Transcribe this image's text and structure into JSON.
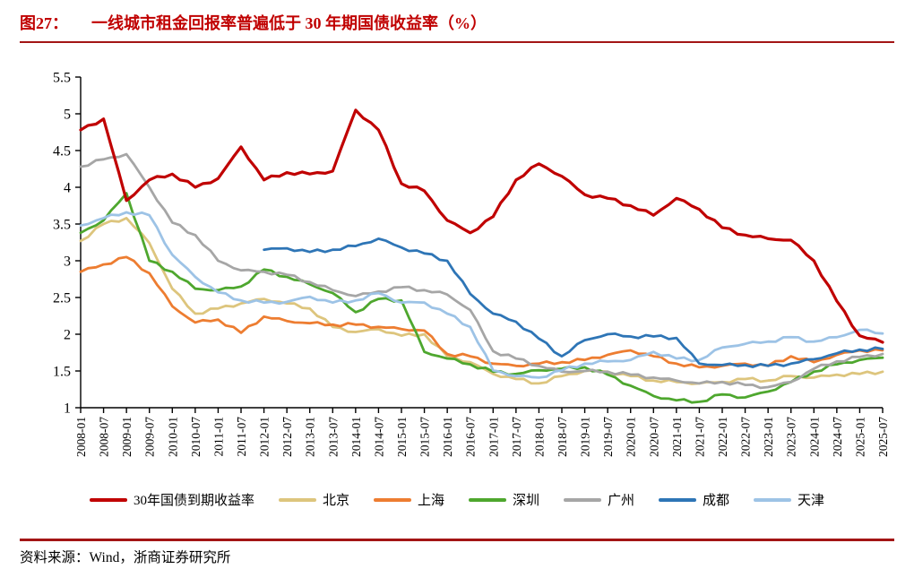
{
  "page": {
    "figure_label": "图27：",
    "title": "一线城市租金回报率普遍低于 30 年期国债收益率（%）",
    "source": "资料来源：Wind，浙商证券研究所",
    "accent_color": "#c00000",
    "rule_color": "#a31515"
  },
  "chart_data": {
    "type": "line",
    "title": "一线城市租金回报率普遍低于 30 年期国债收益率（%）",
    "xlabel": "",
    "ylabel": "",
    "ylim": [
      1,
      5.5
    ],
    "y_ticks": [
      5.5,
      5,
      4.5,
      4,
      3.5,
      3,
      2.5,
      2,
      1.5,
      1
    ],
    "grid": false,
    "legend_position": "bottom",
    "categories": [
      "2008-01",
      "2008-07",
      "2009-01",
      "2009-07",
      "2010-01",
      "2010-07",
      "2011-01",
      "2011-07",
      "2012-01",
      "2012-07",
      "2013-01",
      "2013-07",
      "2014-01",
      "2014-07",
      "2015-01",
      "2015-07",
      "2016-01",
      "2016-07",
      "2017-01",
      "2017-07",
      "2018-01",
      "2018-07",
      "2019-01",
      "2019-07",
      "2020-01",
      "2020-07",
      "2021-01",
      "2021-07",
      "2022-01",
      "2022-07",
      "2023-01",
      "2023-07",
      "2024-01",
      "2024-07",
      "2025-01",
      "2025-07"
    ],
    "z_order": [
      1,
      2,
      3,
      4,
      6,
      5,
      0
    ],
    "series": [
      {
        "id": "bond-30y",
        "name": "30年国债到期收益率",
        "color": "#c00000",
        "width": 3.2,
        "values": [
          4.78,
          4.93,
          3.82,
          4.1,
          4.18,
          4.0,
          4.12,
          4.55,
          4.1,
          4.2,
          4.18,
          4.22,
          5.05,
          4.78,
          4.05,
          3.95,
          3.55,
          3.38,
          3.6,
          4.1,
          4.32,
          4.15,
          3.9,
          3.85,
          3.75,
          3.62,
          3.85,
          3.7,
          3.45,
          3.35,
          3.3,
          3.28,
          3.0,
          2.45,
          1.98,
          1.89
        ]
      },
      {
        "id": "beijing",
        "name": "北京",
        "color": "#ddc57d",
        "width": 2.8,
        "values": [
          3.27,
          3.5,
          3.58,
          3.24,
          2.62,
          2.28,
          2.35,
          2.42,
          2.48,
          2.42,
          2.35,
          2.1,
          2.03,
          2.07,
          1.98,
          2.0,
          1.7,
          1.62,
          1.46,
          1.39,
          1.33,
          1.43,
          1.5,
          1.49,
          1.43,
          1.37,
          1.35,
          1.33,
          1.35,
          1.39,
          1.37,
          1.43,
          1.41,
          1.45,
          1.46,
          1.49
        ]
      },
      {
        "id": "shanghai",
        "name": "上海",
        "color": "#ed7d31",
        "width": 2.8,
        "values": [
          2.85,
          2.95,
          3.05,
          2.83,
          2.38,
          2.16,
          2.2,
          2.02,
          2.24,
          2.18,
          2.15,
          2.13,
          2.13,
          2.1,
          2.07,
          2.05,
          1.73,
          1.7,
          1.6,
          1.57,
          1.6,
          1.62,
          1.65,
          1.72,
          1.78,
          1.7,
          1.6,
          1.55,
          1.57,
          1.6,
          1.57,
          1.7,
          1.62,
          1.72,
          1.78,
          1.78
        ]
      },
      {
        "id": "shenzhen",
        "name": "深圳",
        "color": "#4ea72e",
        "width": 2.8,
        "values": [
          3.38,
          3.55,
          3.92,
          3.0,
          2.85,
          2.62,
          2.6,
          2.65,
          2.88,
          2.78,
          2.68,
          2.56,
          2.3,
          2.48,
          2.46,
          1.76,
          1.67,
          1.59,
          1.49,
          1.46,
          1.51,
          1.53,
          1.55,
          1.45,
          1.3,
          1.16,
          1.1,
          1.08,
          1.18,
          1.14,
          1.22,
          1.35,
          1.49,
          1.59,
          1.65,
          1.68
        ]
      },
      {
        "id": "guangzhou",
        "name": "广州",
        "color": "#a6a6a6",
        "width": 2.8,
        "values": [
          4.28,
          4.38,
          4.45,
          4.0,
          3.52,
          3.35,
          3.0,
          2.87,
          2.85,
          2.81,
          2.71,
          2.6,
          2.52,
          2.58,
          2.64,
          2.6,
          2.54,
          2.33,
          1.77,
          1.67,
          1.57,
          1.49,
          1.5,
          1.49,
          1.45,
          1.41,
          1.37,
          1.33,
          1.35,
          1.31,
          1.28,
          1.35,
          1.53,
          1.63,
          1.69,
          1.73
        ]
      },
      {
        "id": "chengdu",
        "name": "成都",
        "color": "#2e75b6",
        "width": 2.8,
        "values": [
          null,
          null,
          null,
          null,
          null,
          null,
          null,
          null,
          3.15,
          3.17,
          3.12,
          3.15,
          3.2,
          3.3,
          3.18,
          3.1,
          3.0,
          2.55,
          2.28,
          2.17,
          1.94,
          1.7,
          1.92,
          2.0,
          1.97,
          1.97,
          1.95,
          1.6,
          1.58,
          1.58,
          1.57,
          1.6,
          1.66,
          1.74,
          1.79,
          1.8
        ]
      },
      {
        "id": "tianjin",
        "name": "天津",
        "color": "#9dc3e6",
        "width": 2.8,
        "values": [
          3.48,
          3.58,
          3.66,
          3.62,
          3.08,
          2.78,
          2.57,
          2.46,
          2.43,
          2.44,
          2.51,
          2.43,
          2.46,
          2.56,
          2.43,
          2.43,
          2.28,
          2.1,
          1.51,
          1.43,
          1.41,
          1.51,
          1.6,
          1.63,
          1.65,
          1.76,
          1.67,
          1.65,
          1.82,
          1.87,
          1.9,
          1.96,
          1.9,
          1.96,
          2.06,
          2.01
        ]
      }
    ]
  }
}
